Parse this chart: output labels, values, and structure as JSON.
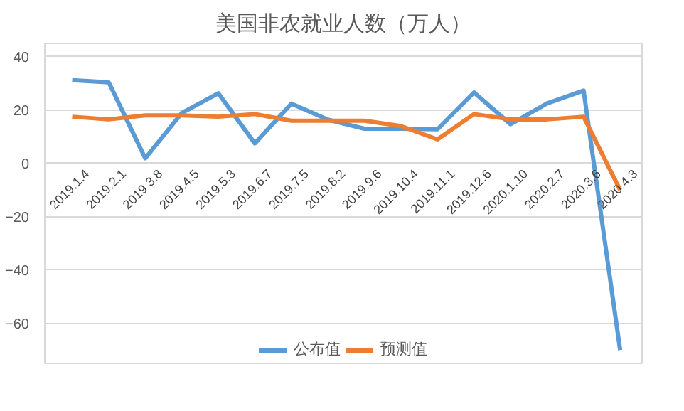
{
  "chart_data": {
    "type": "line",
    "title": "美国非农就业人数（万人）",
    "categories": [
      "2019.1.4",
      "2019.2.1",
      "2019.3.8",
      "2019.4.5",
      "2019.5.3",
      "2019.6.7",
      "2019.7.5",
      "2019.8.2",
      "2019.9.6",
      "2019.10.4",
      "2019.11.1",
      "2019.12.6",
      "2020.1.10",
      "2020.2.7",
      "2020.3.6",
      "2020.4.3"
    ],
    "series": [
      {
        "name": "公布值",
        "color": "#5b9bd5",
        "values": [
          31.2,
          30.4,
          1.9,
          18.9,
          26.3,
          7.5,
          22.4,
          16.4,
          13.0,
          13.0,
          12.8,
          26.6,
          14.7,
          22.5,
          27.3,
          -70
        ]
      },
      {
        "name": "预测值",
        "color": "#ed7d31",
        "values": [
          17.5,
          16.5,
          18,
          18,
          17.5,
          18.5,
          16,
          16,
          16,
          14,
          9,
          18.5,
          16.5,
          16.5,
          17.5,
          -10
        ]
      }
    ],
    "ylim": [
      -75,
      45
    ],
    "yticks": [
      -60,
      -40,
      -20,
      0,
      20,
      40
    ],
    "grid": "y",
    "legend": "bottom",
    "marker": "none",
    "line_style": "solid"
  }
}
